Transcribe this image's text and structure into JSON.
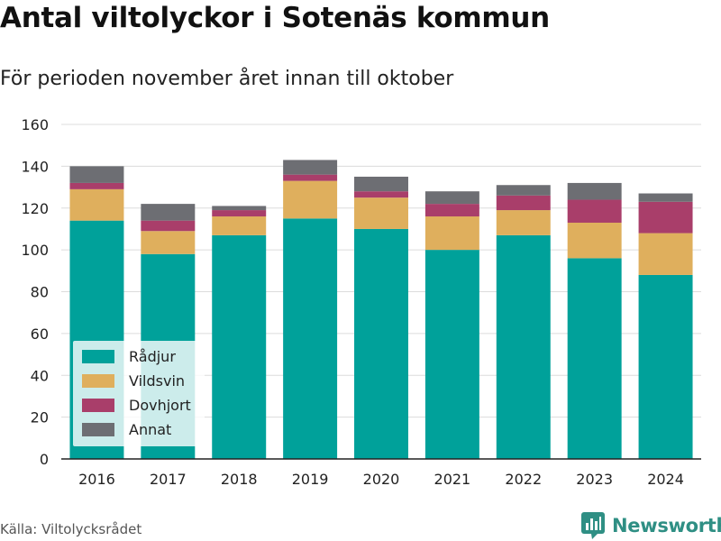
{
  "title": "Antal viltolyckor i Sotenäs kommun",
  "subtitle": "För perioden november året innan till oktober",
  "source": "Källa: Viltolycksrådet",
  "brand": {
    "name": "Newsworthy",
    "icon": "bar-chart-speech-icon",
    "color": "#2f8f84"
  },
  "chart_data": {
    "type": "bar",
    "stacked": true,
    "categories": [
      "2016",
      "2017",
      "2018",
      "2019",
      "2020",
      "2021",
      "2022",
      "2023",
      "2024"
    ],
    "series": [
      {
        "name": "Rådjur",
        "color": "#00a19a",
        "values": [
          114,
          98,
          107,
          115,
          110,
          100,
          107,
          96,
          88
        ]
      },
      {
        "name": "Vildsvin",
        "color": "#dfaf5d",
        "values": [
          15,
          11,
          9,
          18,
          15,
          16,
          12,
          17,
          20
        ]
      },
      {
        "name": "Dovhjort",
        "color": "#a93e6a",
        "values": [
          3,
          5,
          3,
          3,
          3,
          6,
          7,
          11,
          15
        ]
      },
      {
        "name": "Annat",
        "color": "#6d6e73",
        "values": [
          8,
          8,
          2,
          7,
          7,
          6,
          5,
          8,
          4
        ]
      }
    ],
    "ylim": [
      0,
      160
    ],
    "yticks": [
      0,
      20,
      40,
      60,
      80,
      100,
      120,
      140,
      160
    ],
    "grid": true,
    "legend": "bottom-left"
  }
}
